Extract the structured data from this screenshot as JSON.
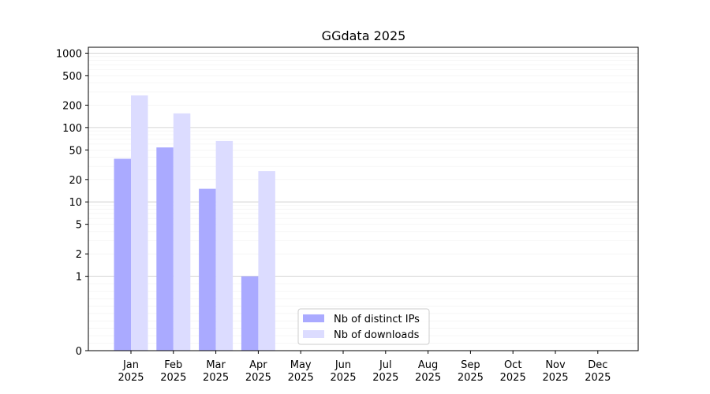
{
  "chart_data": {
    "type": "bar",
    "title": "GGdata 2025",
    "xlabel": "",
    "ylabel": "",
    "categories": [
      {
        "month": "Jan",
        "year": "2025"
      },
      {
        "month": "Feb",
        "year": "2025"
      },
      {
        "month": "Mar",
        "year": "2025"
      },
      {
        "month": "Apr",
        "year": "2025"
      },
      {
        "month": "May",
        "year": "2025"
      },
      {
        "month": "Jun",
        "year": "2025"
      },
      {
        "month": "Jul",
        "year": "2025"
      },
      {
        "month": "Aug",
        "year": "2025"
      },
      {
        "month": "Sep",
        "year": "2025"
      },
      {
        "month": "Oct",
        "year": "2025"
      },
      {
        "month": "Nov",
        "year": "2025"
      },
      {
        "month": "Dec",
        "year": "2025"
      }
    ],
    "series": [
      {
        "name": "Nb of distinct IPs",
        "color": "#aaaaff",
        "values": [
          38,
          54,
          15,
          1,
          null,
          null,
          null,
          null,
          null,
          null,
          null,
          null
        ]
      },
      {
        "name": "Nb of downloads",
        "color": "#dcdcff",
        "values": [
          270,
          155,
          66,
          26,
          null,
          null,
          null,
          null,
          null,
          null,
          null,
          null
        ]
      }
    ],
    "yscale": "symlog",
    "ylim": [
      0,
      1200
    ],
    "yticks": [
      0,
      1,
      2,
      5,
      10,
      20,
      50,
      100,
      200,
      500,
      1000
    ],
    "ytick_labels": [
      "0",
      "1",
      "2",
      "5",
      "10",
      "20",
      "50",
      "100",
      "200",
      "500",
      "1000"
    ],
    "grid": "horizontal",
    "legend_position": "lower-center"
  }
}
